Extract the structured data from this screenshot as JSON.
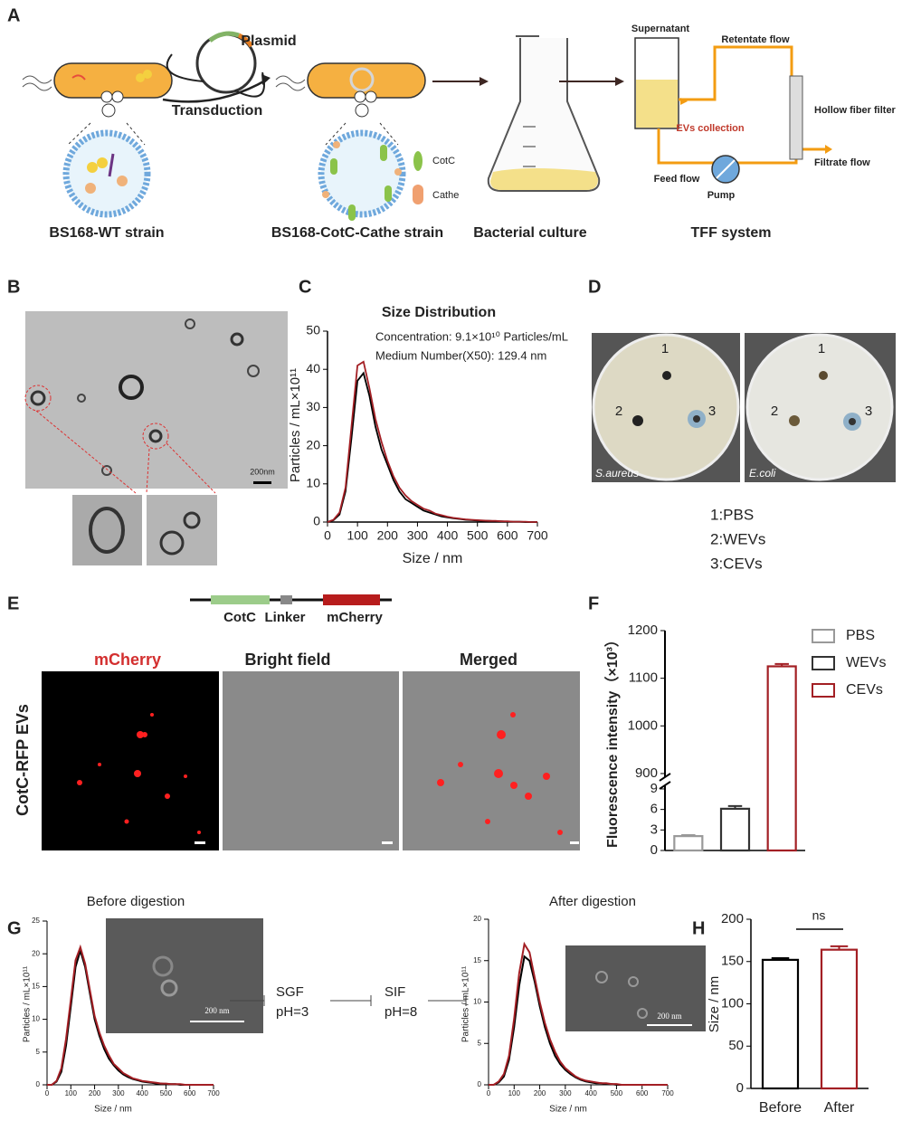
{
  "panel_labels": [
    "A",
    "B",
    "C",
    "D",
    "E",
    "F",
    "G",
    "H"
  ],
  "panel_a": {
    "plasmid": "Plasmid",
    "transduction": "Transduction",
    "wt_strain": "BS168-WT strain",
    "cotc_strain": "BS168-CotC-Cathe strain",
    "culture": "Bacterial culture",
    "tff": "TFF system",
    "cotc": "CotC",
    "cathe": "Cathe",
    "supernatant": "Supernatant",
    "retentate": "Retentate flow",
    "evs_collection": "EVs collection",
    "hollow_fiber": "Hollow fiber filter",
    "filtrate": "Filtrate flow",
    "feed": "Feed flow",
    "pump": "Pump"
  },
  "panel_b": {
    "scale_bar": "200nm"
  },
  "panel_d": {
    "plates": [
      "S.aureus",
      "E.coli"
    ],
    "well_numbers": [
      "1",
      "2",
      "3"
    ],
    "legend": [
      "1:PBS",
      "2:WEVs",
      "3:CEVs"
    ]
  },
  "panel_e": {
    "construct": [
      "CotC",
      "Linker",
      "mCherry"
    ],
    "channels": [
      "mCherry",
      "Bright field",
      "Merged"
    ],
    "row_label": "CotC-RFP EVs"
  },
  "panel_g": {
    "steps": [
      "SGF",
      "pH=3",
      "SIF",
      "pH=8"
    ],
    "inset_scale": "200 nm"
  },
  "chart_data": [
    {
      "type": "line",
      "title": "Size Distribution",
      "annotations": [
        "Concentration: 9.1×10¹⁰ Particles/mL",
        "Medium Number(X50): 129.4 nm"
      ],
      "x_label": "Size / nm",
      "y_label": "Particles / mL×10¹¹",
      "x": [
        0,
        20,
        40,
        60,
        80,
        100,
        120,
        140,
        160,
        180,
        200,
        220,
        240,
        260,
        280,
        300,
        320,
        340,
        360,
        380,
        400,
        420,
        440,
        460,
        480,
        500,
        520,
        540,
        560,
        580,
        600,
        620,
        640,
        660,
        680,
        700
      ],
      "series": [
        {
          "color": "#000000",
          "values": [
            0,
            0.5,
            2,
            8,
            22,
            37,
            39,
            33,
            25,
            19,
            15,
            11,
            8,
            6,
            5,
            4,
            3,
            2.5,
            2,
            1.5,
            1.2,
            1,
            0.8,
            0.6,
            0.5,
            0.4,
            0.3,
            0.3,
            0.2,
            0.2,
            0.1,
            0.1,
            0.1,
            0,
            0,
            0
          ]
        },
        {
          "color": "#a31f24",
          "values": [
            0,
            0.6,
            2.5,
            9,
            25,
            41,
            42,
            35,
            27,
            21,
            16,
            12,
            9,
            7,
            5.5,
            4.5,
            3.5,
            3,
            2.2,
            1.8,
            1.4,
            1.1,
            0.9,
            0.7,
            0.6,
            0.5,
            0.4,
            0.3,
            0.3,
            0.2,
            0.2,
            0.1,
            0.1,
            0.1,
            0,
            0
          ]
        }
      ],
      "xlim": [
        0,
        700
      ],
      "xticks": [
        0,
        100,
        200,
        300,
        400,
        500,
        600,
        700
      ],
      "ylim": [
        0,
        50
      ],
      "yticks": [
        0,
        10,
        20,
        30,
        40,
        50
      ]
    },
    {
      "type": "bar",
      "y_label": "Fluorescence intensity（×10³）",
      "categories": [
        "PBS",
        "WEVs",
        "CEVs"
      ],
      "values": [
        2.1,
        6.1,
        1125
      ],
      "errors": [
        0.15,
        0.4,
        5
      ],
      "colors": [
        "#999999",
        "#333333",
        "#a31f24"
      ],
      "bar_style": "outline",
      "ylim": [
        0,
        1200
      ],
      "axis_break": [
        9,
        900
      ],
      "yticks": [
        0,
        3,
        6,
        9,
        900,
        1000,
        1100,
        1200
      ],
      "legend": "top right"
    },
    {
      "type": "line",
      "title": "Before digestion",
      "x_label": "Size / nm",
      "y_label": "Particles / mL×10¹¹",
      "x": [
        0,
        20,
        40,
        60,
        80,
        100,
        120,
        140,
        160,
        180,
        200,
        220,
        240,
        260,
        280,
        300,
        320,
        340,
        360,
        380,
        400,
        420,
        440,
        460,
        480,
        500,
        520,
        540,
        560,
        580,
        600,
        620,
        640,
        660,
        680,
        700
      ],
      "series": [
        {
          "color": "#000000",
          "values": [
            0,
            0,
            0.5,
            2,
            6,
            12,
            18,
            20.5,
            18,
            14,
            10,
            7.5,
            5.5,
            4,
            3,
            2.2,
            1.6,
            1.2,
            0.9,
            0.7,
            0.5,
            0.4,
            0.3,
            0.2,
            0.2,
            0.1,
            0.1,
            0.1,
            0,
            0,
            0,
            0,
            0,
            0,
            0,
            0
          ]
        },
        {
          "color": "#a31f24",
          "values": [
            0,
            0,
            0.6,
            2.5,
            7,
            13,
            19,
            21,
            18.5,
            14.5,
            10.5,
            8,
            6,
            4.5,
            3.2,
            2.5,
            1.8,
            1.4,
            1,
            0.8,
            0.6,
            0.5,
            0.4,
            0.3,
            0.2,
            0.2,
            0.1,
            0.1,
            0.1,
            0,
            0,
            0,
            0,
            0,
            0,
            0
          ]
        }
      ],
      "xlim": [
        0,
        700
      ],
      "xticks": [
        0,
        100,
        200,
        300,
        400,
        500,
        600,
        700
      ],
      "ylim": [
        0,
        25
      ],
      "yticks": [
        0,
        5,
        10,
        15,
        20,
        25
      ]
    },
    {
      "type": "line",
      "title": "After digestion",
      "x_label": "Size / nm",
      "y_label": "Particles / mL×10¹¹",
      "x": [
        0,
        20,
        40,
        60,
        80,
        100,
        120,
        140,
        160,
        180,
        200,
        220,
        240,
        260,
        280,
        300,
        320,
        340,
        360,
        380,
        400,
        420,
        440,
        460,
        480,
        500,
        520,
        540,
        560,
        580,
        600,
        620,
        640,
        660,
        680,
        700
      ],
      "series": [
        {
          "color": "#000000",
          "values": [
            0,
            0,
            0.3,
            1,
            3,
            7,
            12,
            15.5,
            15,
            12.5,
            9.5,
            7,
            5,
            3.5,
            2.5,
            1.8,
            1.3,
            0.9,
            0.6,
            0.4,
            0.3,
            0.2,
            0.2,
            0.1,
            0.1,
            0,
            0,
            0,
            0,
            0,
            0,
            0,
            0,
            0,
            0,
            0
          ]
        },
        {
          "color": "#a31f24",
          "values": [
            0,
            0,
            0.4,
            1.3,
            3.5,
            8,
            13.5,
            17,
            16,
            13,
            10,
            7.5,
            5.5,
            4,
            2.8,
            2,
            1.5,
            1,
            0.7,
            0.5,
            0.4,
            0.3,
            0.2,
            0.2,
            0.1,
            0.1,
            0,
            0,
            0,
            0,
            0,
            0,
            0,
            0,
            0,
            0
          ]
        }
      ],
      "xlim": [
        0,
        700
      ],
      "xticks": [
        0,
        100,
        200,
        300,
        400,
        500,
        600,
        700
      ],
      "ylim": [
        0,
        20
      ],
      "yticks": [
        0,
        5,
        10,
        15,
        20
      ]
    },
    {
      "type": "bar",
      "y_label": "Size / nm",
      "categories": [
        "Before",
        "After"
      ],
      "values": [
        152,
        164
      ],
      "errors": [
        2,
        4
      ],
      "colors": [
        "#000000",
        "#a31f24"
      ],
      "bar_style": "outline",
      "annotations": [
        "ns"
      ],
      "ylim": [
        0,
        200
      ],
      "yticks": [
        0,
        50,
        100,
        150,
        200
      ]
    }
  ]
}
